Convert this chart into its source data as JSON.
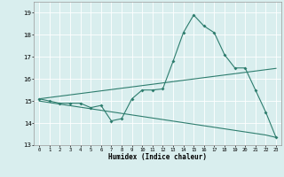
{
  "xlabel": "Humidex (Indice chaleur)",
  "x_values": [
    0,
    1,
    2,
    3,
    4,
    5,
    6,
    7,
    8,
    9,
    10,
    11,
    12,
    13,
    14,
    15,
    16,
    17,
    18,
    19,
    20,
    21,
    22,
    23
  ],
  "line1_y": [
    15.1,
    15.0,
    14.9,
    14.9,
    14.9,
    14.7,
    14.8,
    14.1,
    14.2,
    15.1,
    15.5,
    15.5,
    15.55,
    16.8,
    18.1,
    18.9,
    18.4,
    18.1,
    17.1,
    16.5,
    16.5,
    15.5,
    14.5,
    13.35
  ],
  "line2_y": [
    15.1,
    15.16,
    15.22,
    15.28,
    15.34,
    15.4,
    15.46,
    15.52,
    15.58,
    15.64,
    15.7,
    15.76,
    15.82,
    15.88,
    15.94,
    16.0,
    16.06,
    16.12,
    16.18,
    16.24,
    16.3,
    16.36,
    16.42,
    16.48
  ],
  "line3_y": [
    15.0,
    14.93,
    14.86,
    14.79,
    14.72,
    14.65,
    14.58,
    14.51,
    14.44,
    14.37,
    14.3,
    14.23,
    14.16,
    14.09,
    14.02,
    13.95,
    13.88,
    13.81,
    13.74,
    13.67,
    13.6,
    13.53,
    13.46,
    13.35
  ],
  "line_color": "#2E7D6E",
  "bg_color": "#d9eeee",
  "grid_color": "#ffffff",
  "ylim": [
    13.0,
    19.5
  ],
  "xlim": [
    -0.5,
    23.5
  ],
  "yticks": [
    13,
    14,
    15,
    16,
    17,
    18,
    19
  ],
  "xticks": [
    0,
    1,
    2,
    3,
    4,
    5,
    6,
    7,
    8,
    9,
    10,
    11,
    12,
    13,
    14,
    15,
    16,
    17,
    18,
    19,
    20,
    21,
    22,
    23
  ]
}
